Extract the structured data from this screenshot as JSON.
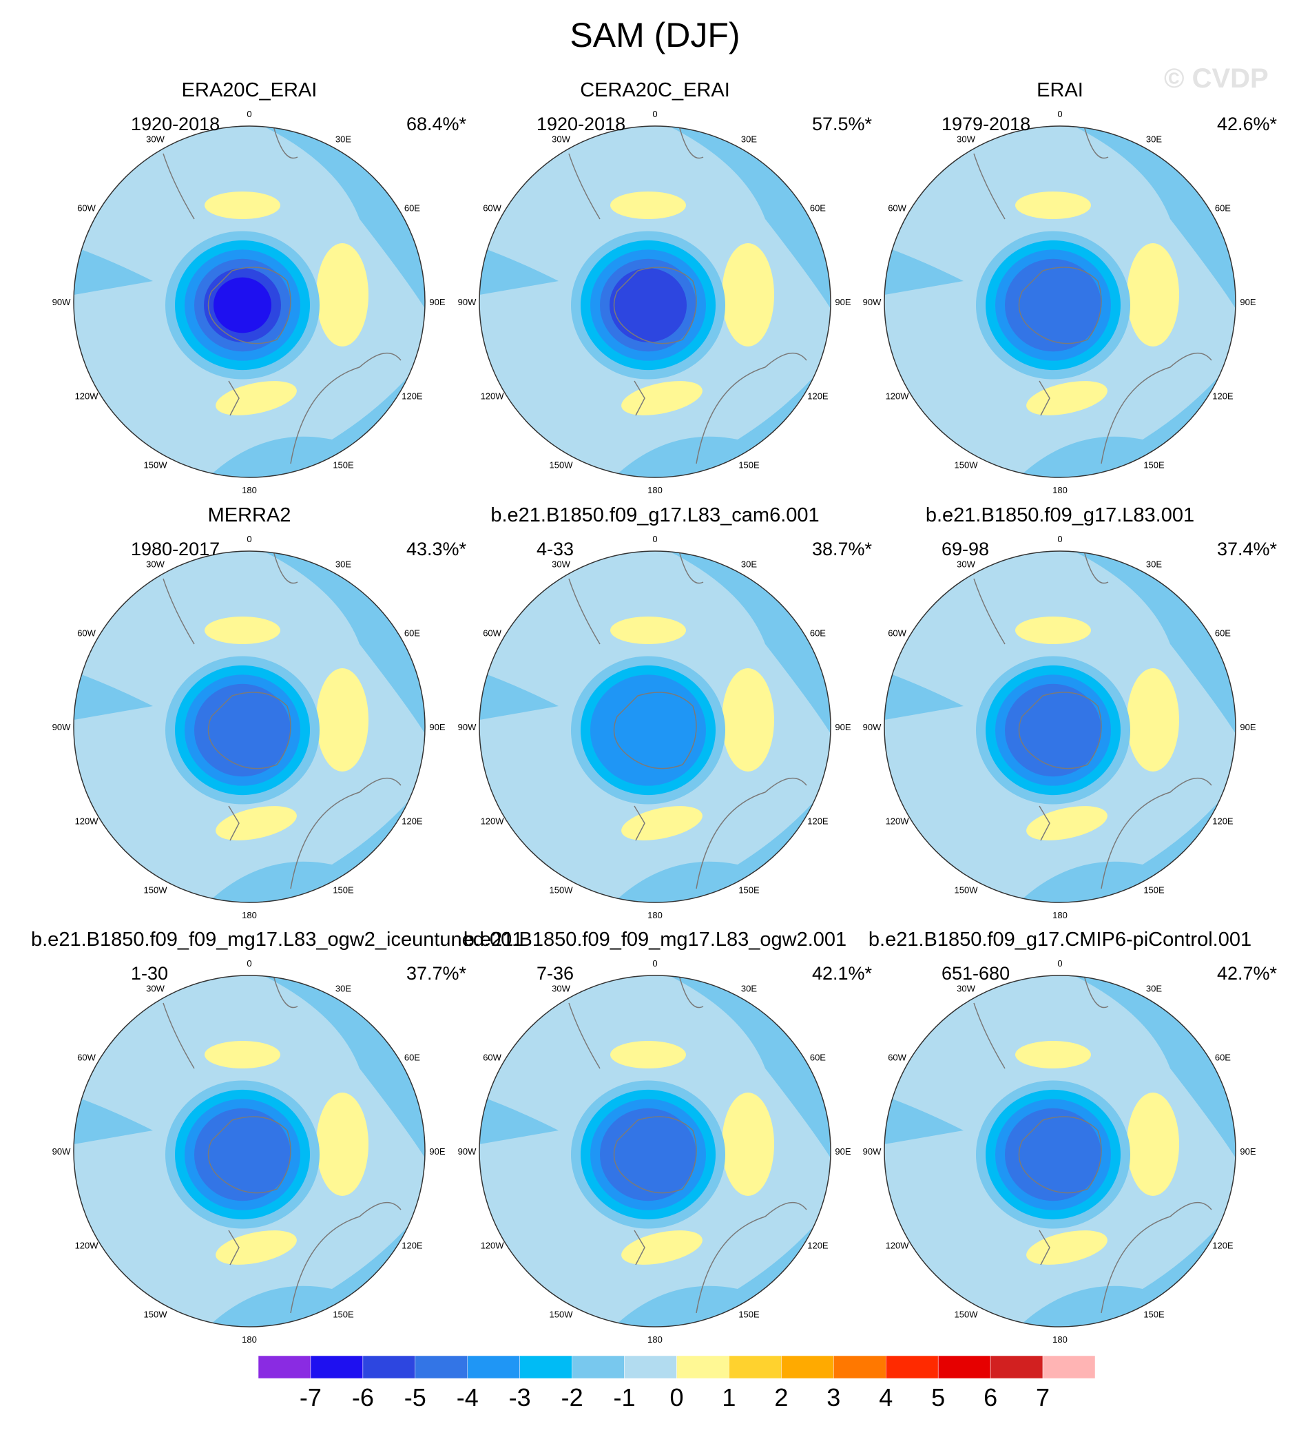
{
  "title": "SAM (DJF)",
  "watermark": "© CVDP",
  "panels": [
    {
      "title": "ERA20C_ERAI",
      "years": "1920-2018",
      "pct": "68.4%*",
      "min_level": -6
    },
    {
      "title": "CERA20C_ERAI",
      "years": "1920-2018",
      "pct": "57.5%*",
      "min_level": -5
    },
    {
      "title": "ERAI",
      "years": "1979-2018",
      "pct": "42.6%*",
      "min_level": -4
    },
    {
      "title": "MERRA2",
      "years": "1980-2017",
      "pct": "43.3%*",
      "min_level": -4
    },
    {
      "title": "b.e21.B1850.f09_g17.L83_cam6.001",
      "years": "4-33",
      "pct": "38.7%*",
      "min_level": -3
    },
    {
      "title": "b.e21.B1850.f09_g17.L83.001",
      "years": "69-98",
      "pct": "37.4%*",
      "min_level": -4
    },
    {
      "title": "b.e21.B1850.f09_f09_mg17.L83_ogw2_iceuntuned.001",
      "years": "1-30",
      "pct": "37.7%*",
      "min_level": -4
    },
    {
      "title": "b.e21.B1850.f09_f09_mg17.L83_ogw2.001",
      "years": "7-36",
      "pct": "42.1%*",
      "min_level": -4
    },
    {
      "title": "b.e21.B1850.f09_g17.CMIP6-piControl.001",
      "years": "651-680",
      "pct": "42.7%*",
      "min_level": -4
    }
  ],
  "longitude_labels": {
    "top": "0",
    "bottom": "180",
    "ne": "30E",
    "nw": "30W",
    "ene": "60E",
    "wnw": "60W",
    "east": "90E",
    "west": "90W",
    "ese": "120E",
    "wsw": "120W",
    "se": "150E",
    "sw": "150W"
  },
  "colorbar": {
    "labels": [
      "-7",
      "-6",
      "-5",
      "-4",
      "-3",
      "-2",
      "-1",
      "0",
      "1",
      "2",
      "3",
      "4",
      "5",
      "6",
      "7"
    ],
    "colors": [
      "#8a2be2",
      "#1e10f0",
      "#2d46e0",
      "#3375e6",
      "#1f96f5",
      "#00bbf5",
      "#78c8ee",
      "#b2dcf0",
      "#fff894",
      "#ffd22e",
      "#ffaa00",
      "#ff7800",
      "#ff2a00",
      "#e60000",
      "#d22020",
      "#ffb4b4"
    ]
  }
}
